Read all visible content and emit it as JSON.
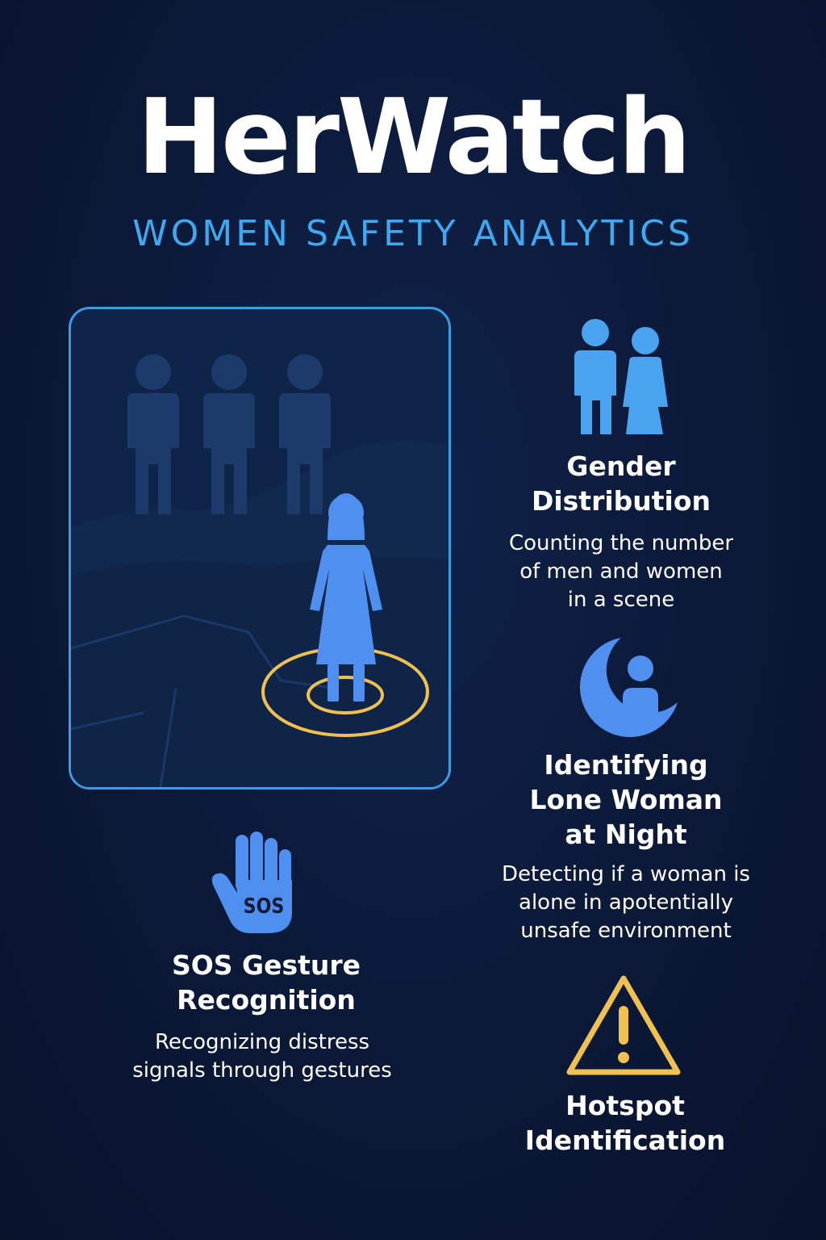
{
  "header": {
    "title": "HerWatch",
    "subtitle": "WOMEN SAFETY ANALYTICS"
  },
  "features": {
    "gender": {
      "icon": "man-woman-icon",
      "title": "Gender\nDistribution",
      "description": "Counting the number\nof men and women\nin a scene"
    },
    "lone_woman": {
      "icon": "moon-person-icon",
      "title": "Identifying\nLone Woman\nat Night",
      "description": "Detecting if a woman is\nalone in apotentially\nunsafe environment"
    },
    "sos": {
      "icon": "sos-hand-icon",
      "icon_label": "SOS",
      "title": "SOS Gesture\nRecognition",
      "description": "Recognizing distress\nsignals through gestures"
    },
    "hotspot": {
      "icon": "warning-triangle-icon",
      "title": "Hotspot\nIdentification"
    }
  },
  "colors": {
    "background": "#0b1836",
    "accent_blue": "#3ea8f0",
    "icon_blue": "#4f8fef",
    "warning_yellow": "#f0c050",
    "text": "#ffffff"
  }
}
